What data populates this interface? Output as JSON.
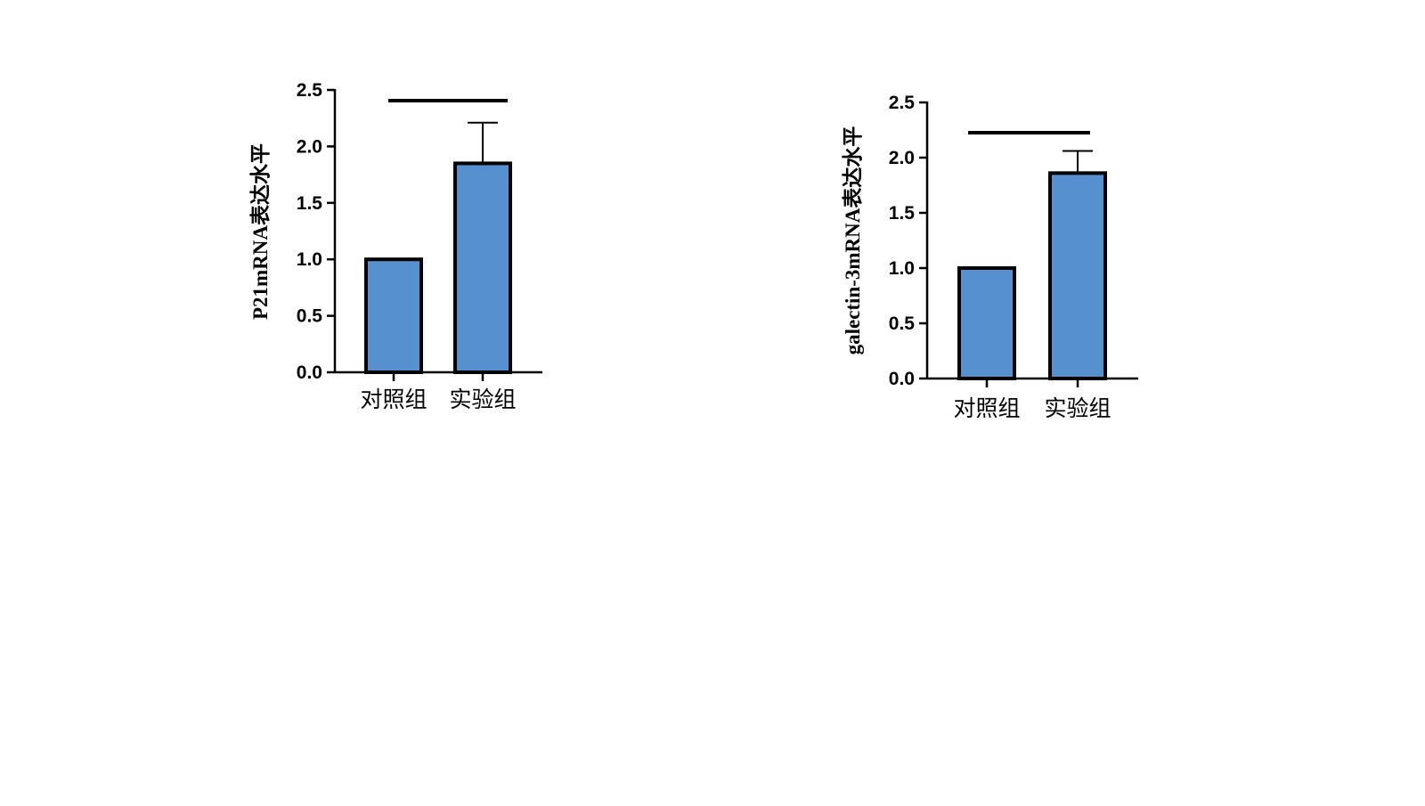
{
  "chart_data": [
    {
      "type": "bar",
      "title": "",
      "xlabel": "",
      "ylabel": "P21mRNA表达水平",
      "categories": [
        "对照组",
        "实验组"
      ],
      "values": [
        1.0,
        1.85
      ],
      "error_upper": [
        0,
        0.36
      ],
      "ylim": [
        0,
        2.5
      ],
      "yticks": [
        "0.0",
        "0.5",
        "1.0",
        "1.5",
        "2.0",
        "2.5"
      ],
      "significance_bar": true,
      "grid": false,
      "bar_color": "#5690ce",
      "edge_color": "#000000"
    },
    {
      "type": "bar",
      "title": "",
      "xlabel": "",
      "ylabel": "galectin-3mRNA表达水平",
      "categories": [
        "对照组",
        "实验组"
      ],
      "values": [
        1.0,
        1.86
      ],
      "error_upper": [
        0,
        0.2
      ],
      "ylim": [
        0,
        2.5
      ],
      "yticks": [
        "0.0",
        "0.5",
        "1.0",
        "1.5",
        "2.0",
        "2.5"
      ],
      "significance_bar": true,
      "grid": false,
      "bar_color": "#5690ce",
      "edge_color": "#000000"
    }
  ]
}
